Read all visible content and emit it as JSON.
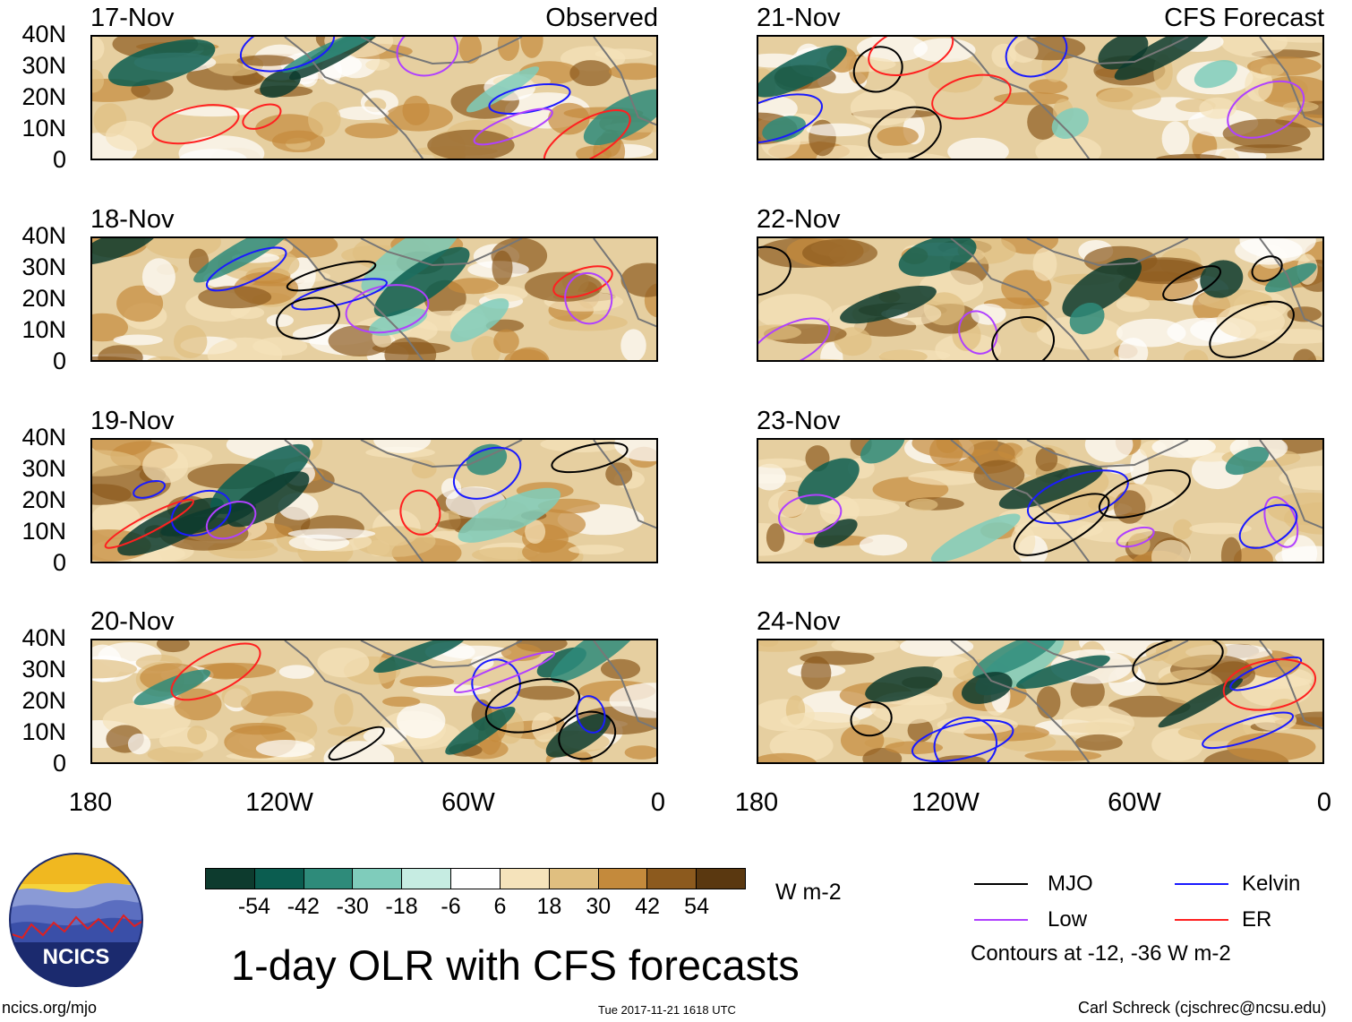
{
  "panels_left": [
    {
      "date": "17-Nov",
      "tag": "Observed"
    },
    {
      "date": "18-Nov",
      "tag": ""
    },
    {
      "date": "19-Nov",
      "tag": ""
    },
    {
      "date": "20-Nov",
      "tag": ""
    }
  ],
  "panels_right": [
    {
      "date": "21-Nov",
      "tag": "CFS Forecast"
    },
    {
      "date": "22-Nov",
      "tag": ""
    },
    {
      "date": "23-Nov",
      "tag": ""
    },
    {
      "date": "24-Nov",
      "tag": ""
    }
  ],
  "lat_labels": [
    "40N",
    "30N",
    "20N",
    "10N",
    "0"
  ],
  "lon_labels": [
    "180",
    "120W",
    "60W",
    "0"
  ],
  "colorbar": {
    "colors": [
      "#0d3b2e",
      "#0b5d50",
      "#2e8b7a",
      "#7fccbb",
      "#c6ece2",
      "#ffffff",
      "#f5e3bb",
      "#e0bf80",
      "#c48a3c",
      "#8c5a1e",
      "#5a3810"
    ],
    "labels": [
      "-54",
      "-42",
      "-30",
      "-18",
      "-6",
      "6",
      "18",
      "30",
      "42",
      "54"
    ],
    "units": "W m-2"
  },
  "legend": {
    "items": [
      {
        "label": "MJO",
        "color": "#000000"
      },
      {
        "label": "Kelvin",
        "color": "#1a1aff"
      },
      {
        "label": "Low",
        "color": "#b040ff"
      },
      {
        "label": "ER",
        "color": "#ff2020"
      }
    ],
    "note": "Contours at -12, -36 W m-2"
  },
  "title": "1-day OLR with CFS forecasts",
  "footer": {
    "url": "ncics.org/mjo",
    "timestamp": "Tue 2017-11-21 1618 UTC",
    "credit": "Carl Schreck (cjschrec@ncsu.edu)",
    "logo_text": "NCICS"
  }
}
